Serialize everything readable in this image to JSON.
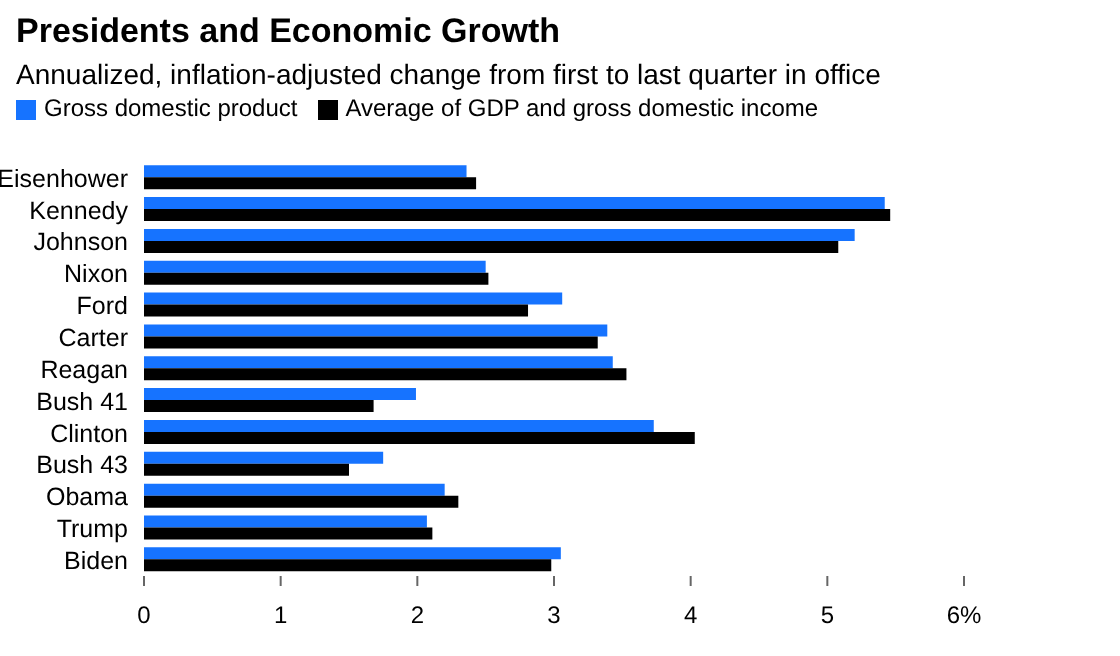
{
  "chart_data": {
    "type": "bar",
    "orientation": "horizontal",
    "title": "Presidents and Economic Growth",
    "subtitle": "Annualized, inflation-adjusted change from first to last quarter in office",
    "categories": [
      "Eisenhower",
      "Kennedy",
      "Johnson",
      "Nixon",
      "Ford",
      "Carter",
      "Reagan",
      "Bush 41",
      "Clinton",
      "Bush 43",
      "Obama",
      "Trump",
      "Biden"
    ],
    "series": [
      {
        "name": "Gross domestic product",
        "color": "#1673ff",
        "values": [
          2.36,
          5.42,
          5.2,
          2.5,
          3.06,
          3.39,
          3.43,
          1.99,
          3.73,
          1.75,
          2.2,
          2.07,
          3.05
        ]
      },
      {
        "name": "Average of GDP and gross domestic income",
        "color": "#000000",
        "values": [
          2.43,
          5.46,
          5.08,
          2.52,
          2.81,
          3.32,
          3.53,
          1.68,
          4.03,
          1.5,
          2.3,
          2.11,
          2.98
        ]
      }
    ],
    "xlim": [
      0,
      6
    ],
    "xticks": [
      0,
      1,
      2,
      3,
      4,
      5,
      {
        "value": 6,
        "label": "6%"
      }
    ],
    "legend": "top left"
  }
}
